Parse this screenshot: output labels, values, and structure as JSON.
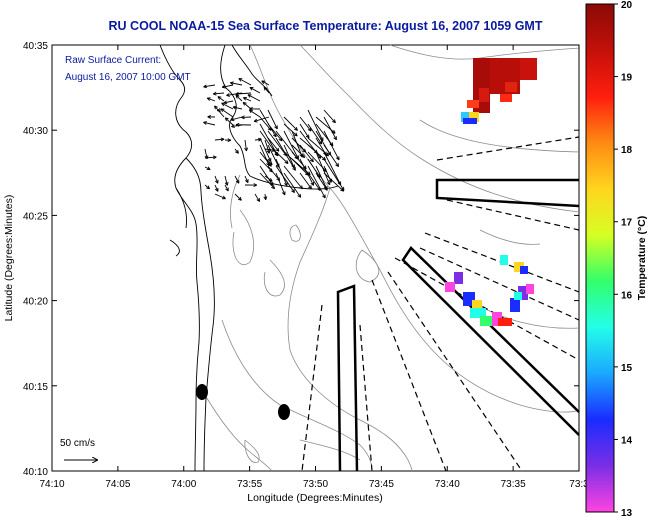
{
  "title": "RU COOL  NOAA-15  Sea Surface Temperature:  August 16, 2007 1059 GMT",
  "current_label_line1": "Raw Surface Current:",
  "current_label_line2": "August 16, 2007 10:00 GMT",
  "scale_label": "50 cm/s",
  "xlabel": "Longitude (Degrees:Minutes)",
  "ylabel": "Latitude (Degrees:Minutes)",
  "colorbar_label": "Temperature (°C)",
  "x_ticks": [
    "74:10",
    "74:05",
    "74:00",
    "73:55",
    "73:50",
    "73:45",
    "73:40",
    "73:35",
    "73:3"
  ],
  "y_ticks": [
    "40:35",
    "40:30",
    "40:25",
    "40:20",
    "40:15",
    "40:10"
  ],
  "colorbar_ticks": [
    "20",
    "19",
    "18",
    "17",
    "16",
    "15",
    "14",
    "13"
  ],
  "colorscale": [
    "#ff44e0",
    "#7a2ee6",
    "#1a2cff",
    "#1aa8ff",
    "#22ffe8",
    "#33ff6a",
    "#d6ff22",
    "#ffd51e",
    "#ff8a12",
    "#ff1e0e",
    "#c4100a",
    "#8a0a06"
  ],
  "colors": {
    "title": "#0a1aa0",
    "label": "#0a1aa0",
    "coast": "#000000",
    "contour": "#8c8c8c"
  }
}
